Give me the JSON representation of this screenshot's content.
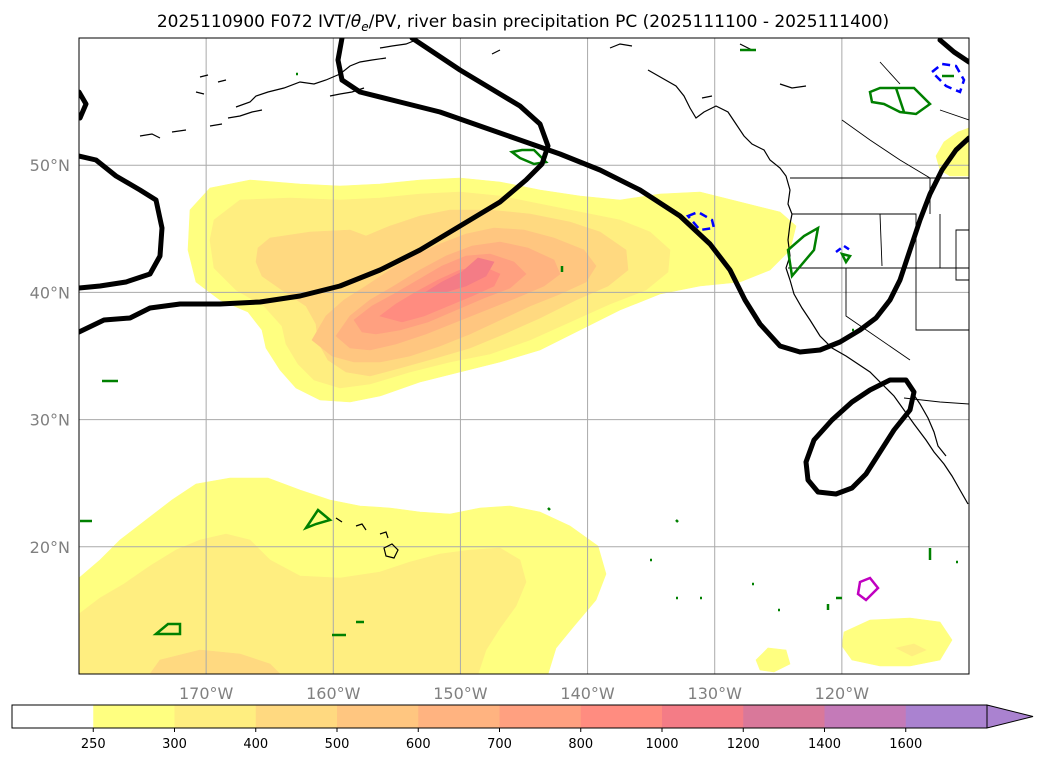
{
  "chart_data": {
    "type": "map",
    "title_prefix": "2025110900 F072 IVT/",
    "title_theta": "θ",
    "title_theta_sub": "e",
    "title_suffix": "/PV, river basin precipitation PC (2025111100 - 2025111400)",
    "lon_range": [
      -180,
      -110
    ],
    "lat_range": [
      10,
      60
    ],
    "lon_ticks": [
      {
        "lon": -170,
        "label": "170°W"
      },
      {
        "lon": -160,
        "label": "160°W"
      },
      {
        "lon": -150,
        "label": "150°W"
      },
      {
        "lon": -140,
        "label": "140°W"
      },
      {
        "lon": -130,
        "label": "130°W"
      },
      {
        "lon": -120,
        "label": "120°W"
      }
    ],
    "lat_ticks": [
      {
        "lat": 50,
        "label": "50°N"
      },
      {
        "lat": 40,
        "label": "40°N"
      },
      {
        "lat": 30,
        "label": "30°N"
      },
      {
        "lat": 20,
        "label": "20°N"
      }
    ],
    "ivt_levels": [
      {
        "value": "250",
        "color": "#ffff80"
      },
      {
        "value": "300",
        "color": "#ffee80"
      },
      {
        "value": "400",
        "color": "#ffd980"
      },
      {
        "value": "500",
        "color": "#ffc680"
      },
      {
        "value": "600",
        "color": "#ffb380"
      },
      {
        "value": "700",
        "color": "#ffa080"
      },
      {
        "value": "800",
        "color": "#ff8c80"
      },
      {
        "value": "1000",
        "color": "#f47c86"
      },
      {
        "value": "1200",
        "color": "#d9789a"
      },
      {
        "value": "1400",
        "color": "#c47ab8"
      },
      {
        "value": "1600",
        "color": "#aa82d0"
      }
    ],
    "colorbar_under_color": "#ffffff",
    "colorbar_extend": "max",
    "ivt_regions": [
      {
        "name": "north-pacific-atmospheric-river",
        "max_level": 7
      },
      {
        "name": "subtropical-plume",
        "max_level": 2
      },
      {
        "name": "baja-plume",
        "max_level": 1
      },
      {
        "name": "pacific-northwest-edge",
        "max_level": 0
      },
      {
        "name": "canada-edge",
        "max_level": 0
      },
      {
        "name": "small-patch-southeast",
        "max_level": 0
      }
    ],
    "pv_contours": [
      {
        "name": "main-trough",
        "color": "#000000"
      },
      {
        "name": "northwest-loop",
        "color": "#000000"
      },
      {
        "name": "gulf-of-alaska-ridge",
        "color": "#000000"
      },
      {
        "name": "cutoff-low",
        "color": "#000000"
      },
      {
        "name": "eastern-ridge",
        "color": "#000000"
      }
    ],
    "precip_pc_colors": {
      "positive": "#008000",
      "negative": "#0000ff",
      "extreme": "#c000c0"
    }
  }
}
